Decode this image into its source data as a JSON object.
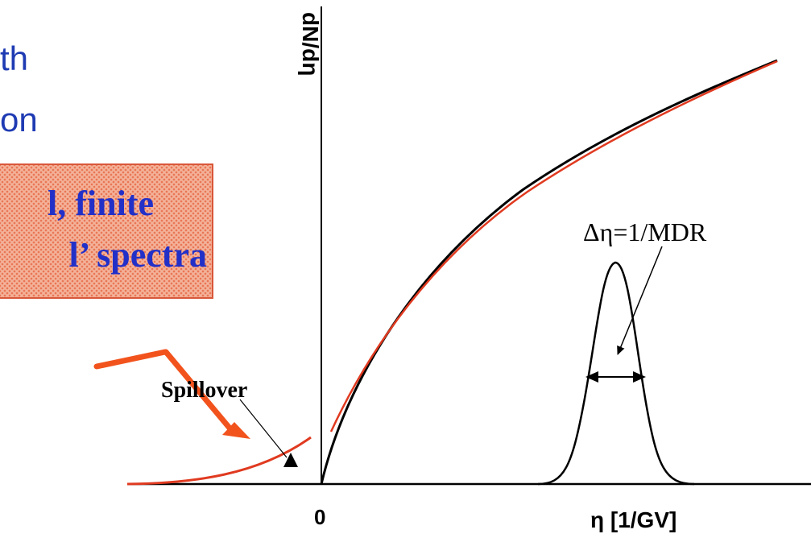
{
  "left_text": {
    "line1": "th",
    "line2": "on"
  },
  "note_box": {
    "line1": "l, finite",
    "line2": "l’ spectra"
  },
  "diagram": {
    "y_axis_label": "dN/dη",
    "x_axis_label": "η [1/GV]",
    "origin_label": "0",
    "resolution_label": "Δη=1/MDR",
    "spillover_label": "Spillover"
  },
  "colors": {
    "text_blue": "#1f3bb3",
    "box_fill": "#f3b29a",
    "arrow_orange": "#f2531d",
    "curve_red": "#e03a20",
    "curve_black": "#000000"
  }
}
